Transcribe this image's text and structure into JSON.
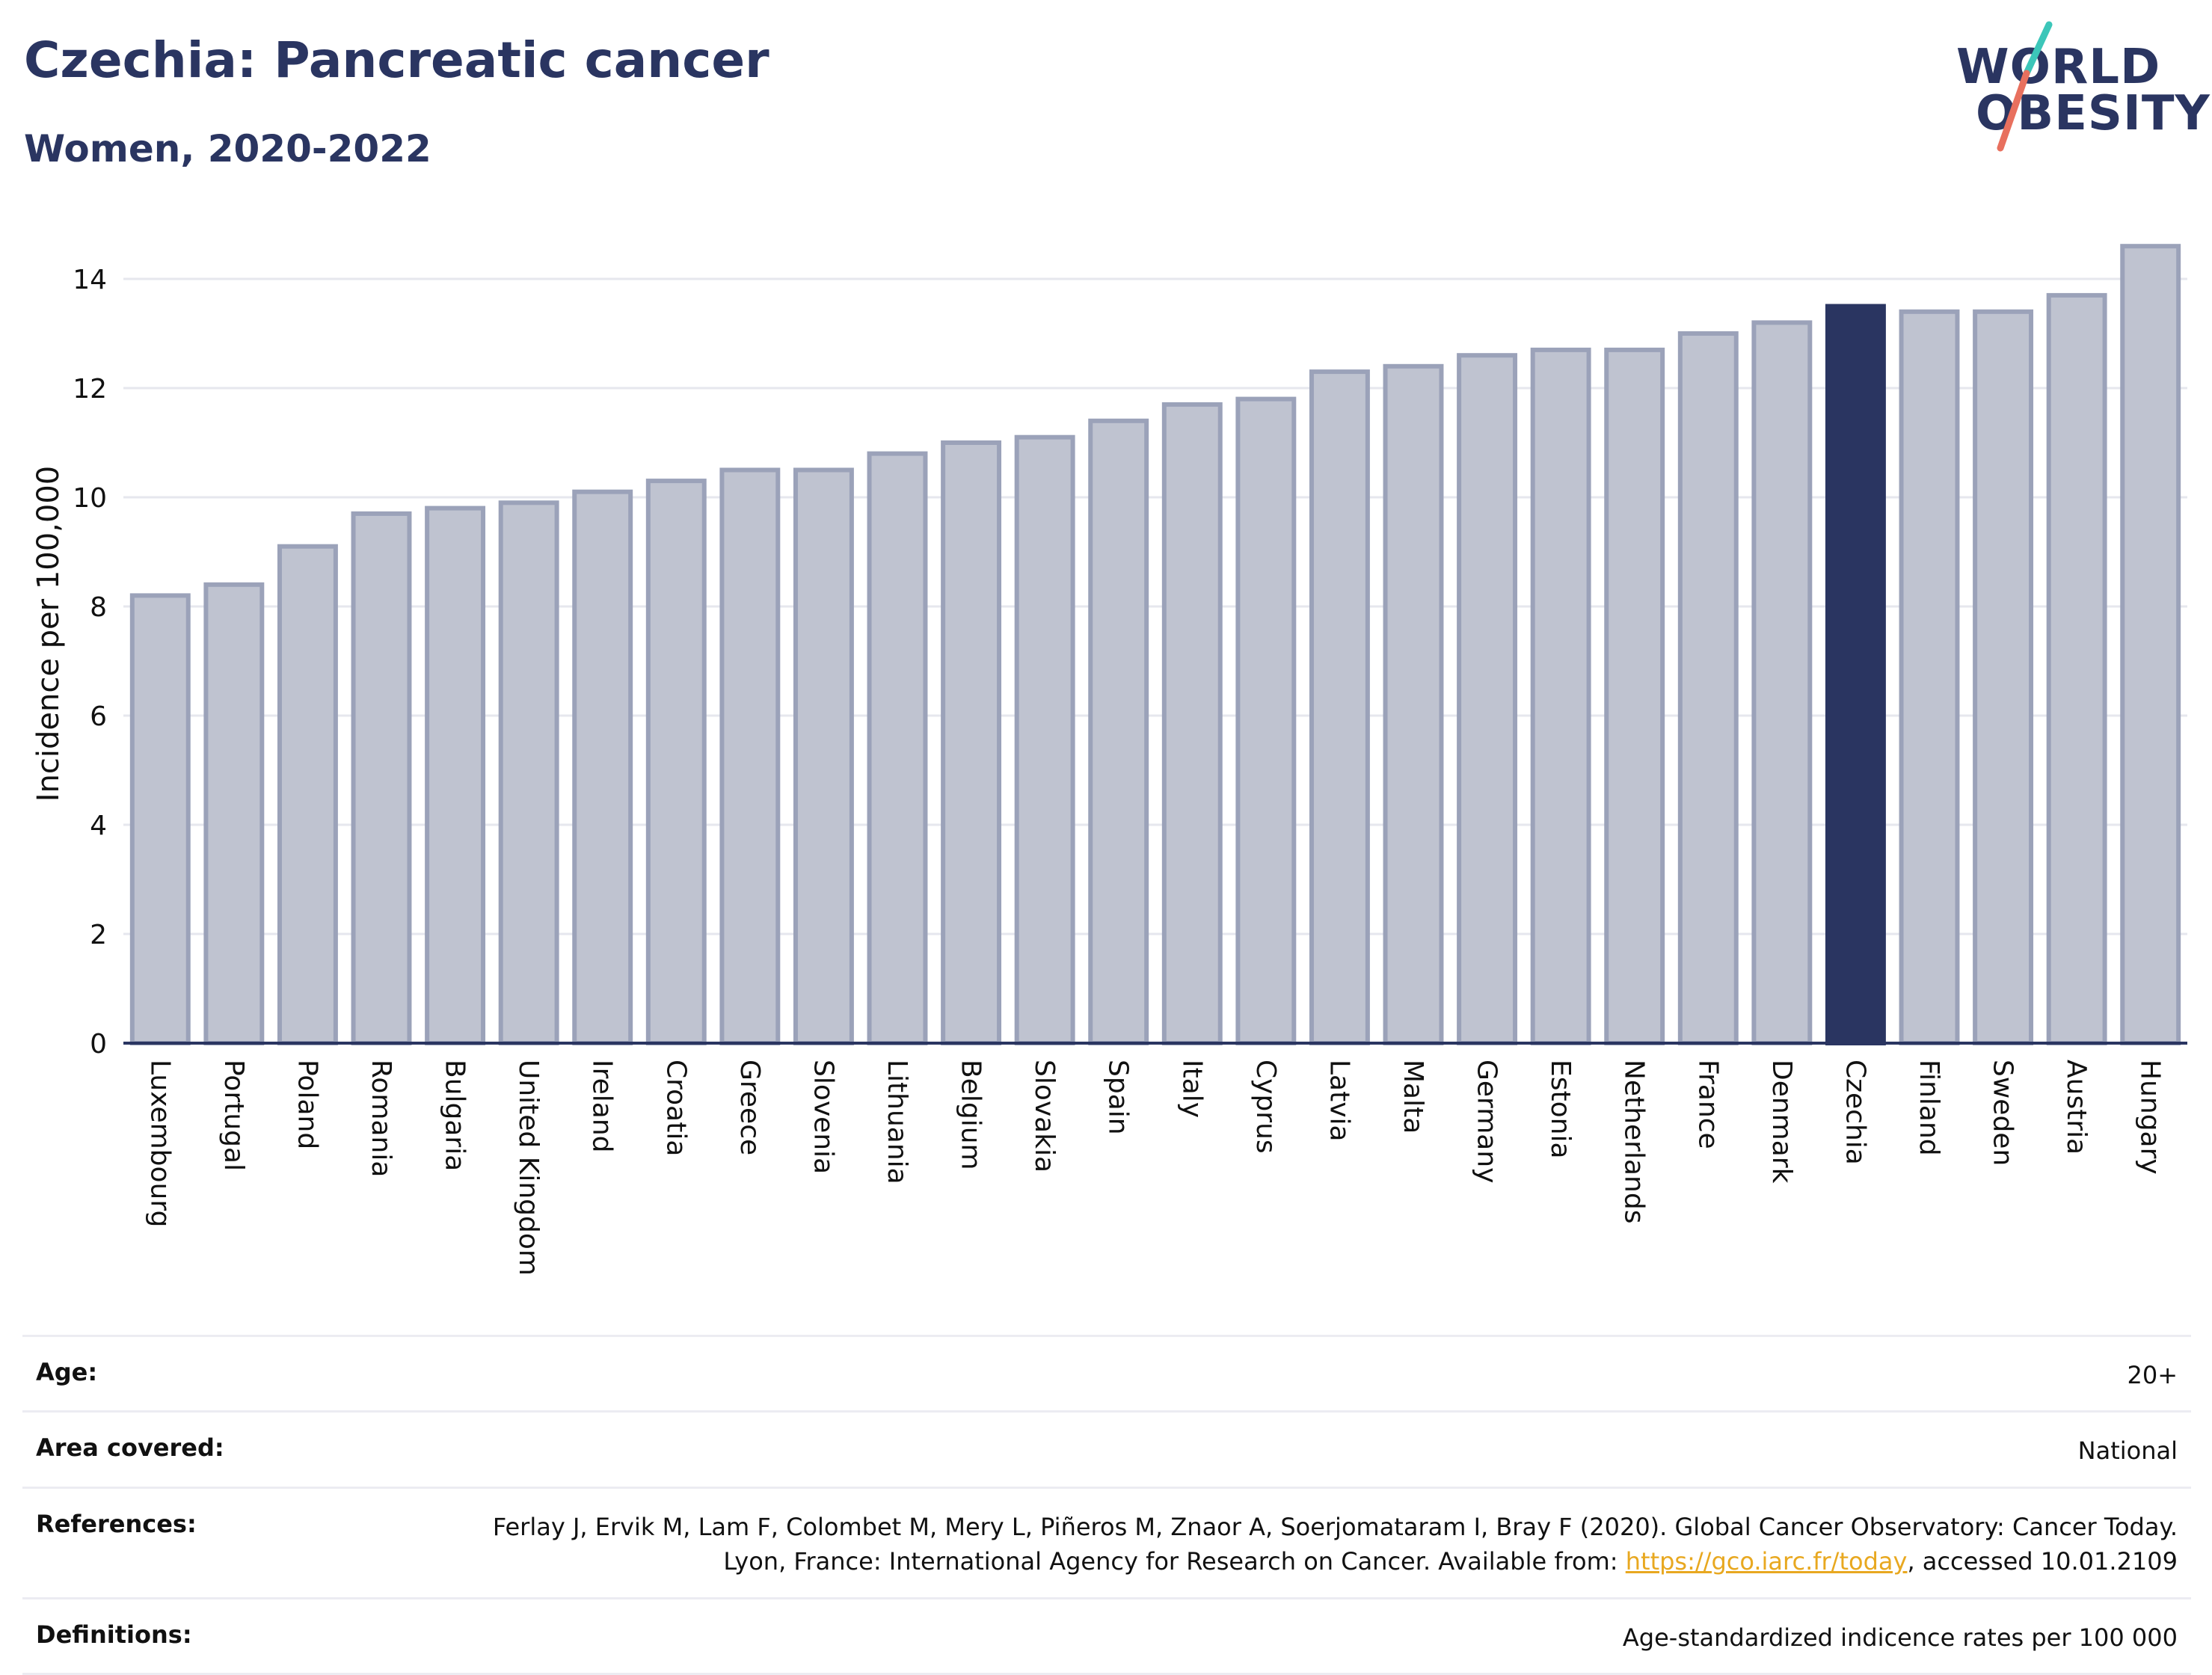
{
  "header": {
    "title": "Czechia: Pancreatic cancer",
    "subtitle": "Women, 2020-2022"
  },
  "logo": {
    "line1": "WORLD",
    "line2": "OBESITY",
    "slash_colors": [
      "#3cc6b9",
      "#e8705e"
    ]
  },
  "colors": {
    "bar": "#bfc3d0",
    "bar_edge": "#9ba2b9",
    "highlight": "#2a3561",
    "axis": "#2a3561",
    "grid": "#e6e7ee",
    "link": "#e8a820"
  },
  "chart_data": {
    "type": "bar",
    "title": "Czechia: Pancreatic cancer",
    "subtitle": "Women, 2020-2022",
    "xlabel": "",
    "ylabel": "Incidence per 100,000",
    "ylim": [
      0,
      15
    ],
    "yticks": [
      0,
      2,
      4,
      6,
      8,
      10,
      12,
      14
    ],
    "grid": true,
    "highlight": "Czechia",
    "categories": [
      "Luxembourg",
      "Portugal",
      "Poland",
      "Romania",
      "Bulgaria",
      "United Kingdom",
      "Ireland",
      "Croatia",
      "Greece",
      "Slovenia",
      "Lithuania",
      "Belgium",
      "Slovakia",
      "Spain",
      "Italy",
      "Cyprus",
      "Latvia",
      "Malta",
      "Germany",
      "Estonia",
      "Netherlands",
      "France",
      "Denmark",
      "Czechia",
      "Finland",
      "Sweden",
      "Austria",
      "Hungary"
    ],
    "values": [
      8.2,
      8.4,
      9.1,
      9.7,
      9.8,
      9.9,
      10.1,
      10.3,
      10.5,
      10.5,
      10.8,
      11.0,
      11.1,
      11.4,
      11.7,
      11.8,
      12.3,
      12.4,
      12.6,
      12.7,
      12.7,
      13.0,
      13.2,
      13.5,
      13.4,
      13.4,
      13.7,
      14.6
    ]
  },
  "info": {
    "age": {
      "label": "Age:",
      "value": "20+"
    },
    "area": {
      "label": "Area covered:",
      "value": "National"
    },
    "references": {
      "label": "References:",
      "text_before": "Ferlay J, Ervik M, Lam F, Colombet M, Mery L, Piñeros M, Znaor A, Soerjomataram I, Bray F (2020). Global Cancer Observatory: Cancer Today. Lyon, France: International Agency for Research on Cancer. Available from: ",
      "link": "https://gco.iarc.fr/today",
      "text_after": ", accessed 10.01.2109"
    },
    "definitions": {
      "label": "Definitions:",
      "value": "Age-standardized indicence rates per 100 000"
    }
  }
}
